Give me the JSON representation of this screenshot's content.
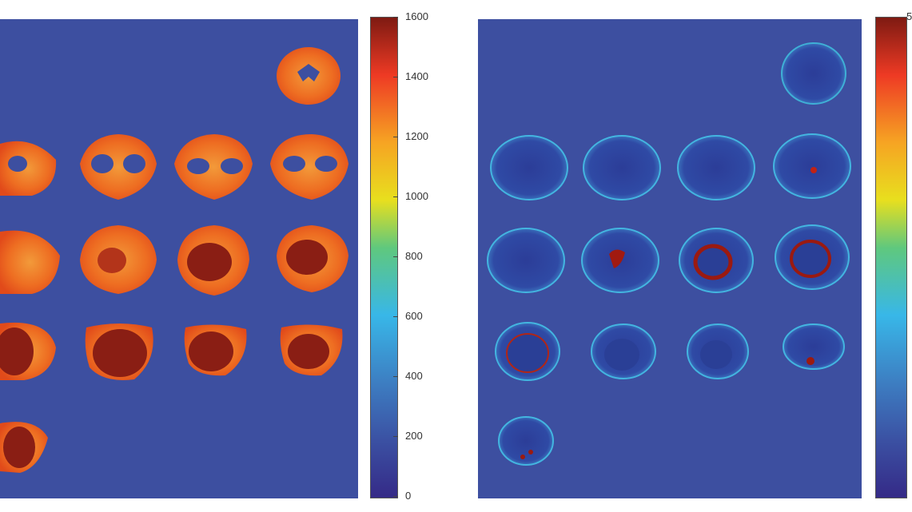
{
  "left_panel": {
    "colorbar_ticks": [
      "1600",
      "1400",
      "1200",
      "1000",
      "800",
      "600",
      "400",
      "200",
      "0"
    ],
    "slice_rows": [
      1,
      4,
      4,
      4,
      1
    ]
  },
  "right_panel": {
    "colorbar_ticks": [
      "5"
    ],
    "slice_rows": [
      1,
      4,
      4,
      4,
      1
    ]
  },
  "colors": {
    "background": "#3d4fa0",
    "tissue_left": "#f07a2a",
    "tissue_left_dark": "#8a1e14",
    "tissue_right": "#2a3f96",
    "tissue_right_hot": "#9b1a10"
  }
}
